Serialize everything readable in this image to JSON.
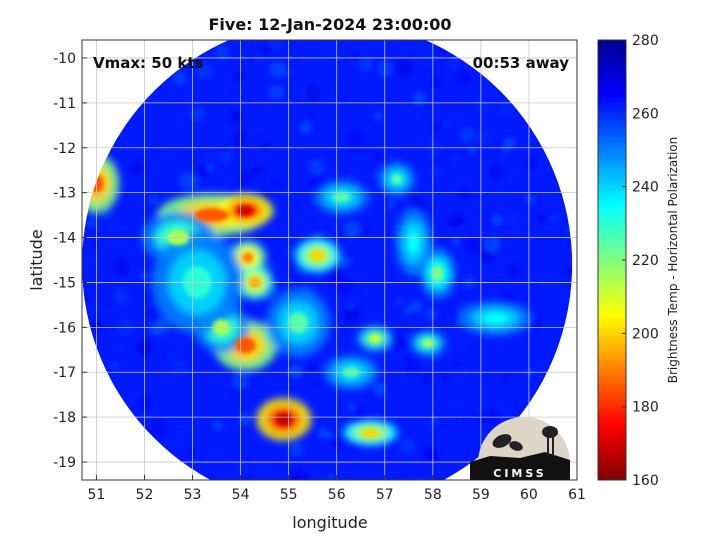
{
  "chart_data": {
    "type": "heatmap",
    "title": "Five: 12-Jan-2024 23:00:00",
    "xlabel": "longitude",
    "ylabel": "latitude",
    "xlim": [
      50.7,
      61
    ],
    "ylim": [
      -19.4,
      -9.6
    ],
    "x_ticks": [
      "51",
      "52",
      "53",
      "54",
      "55",
      "56",
      "57",
      "58",
      "59",
      "60",
      "61"
    ],
    "y_ticks": [
      "-10",
      "-11",
      "-12",
      "-13",
      "-14",
      "-15",
      "-16",
      "-17",
      "-18",
      "-19"
    ],
    "grid": true,
    "annotations": {
      "left": "Vmax: 50 kts",
      "right": "00:53 away"
    },
    "colorbar": {
      "label": "Brightness Temp - Horizontal Polarization",
      "range": [
        160,
        280
      ],
      "ticks": [
        "160",
        "180",
        "200",
        "220",
        "240",
        "260",
        "280"
      ],
      "colormap": "jet"
    },
    "swath": {
      "center": [
        55.8,
        -14.6
      ],
      "radius_deg": 5.1,
      "background_value": 262
    },
    "features": [
      {
        "lon": 53.4,
        "lat": -13.5,
        "value": 185,
        "rx": 0.6,
        "ry": 0.25
      },
      {
        "lon": 54.1,
        "lat": -13.4,
        "value": 170,
        "rx": 0.3,
        "ry": 0.2
      },
      {
        "lon": 52.7,
        "lat": -14.0,
        "value": 215,
        "rx": 0.4,
        "ry": 0.3
      },
      {
        "lon": 54.15,
        "lat": -14.45,
        "value": 190,
        "rx": 0.2,
        "ry": 0.2
      },
      {
        "lon": 54.3,
        "lat": -15.0,
        "value": 195,
        "rx": 0.2,
        "ry": 0.2
      },
      {
        "lon": 55.6,
        "lat": -14.4,
        "value": 200,
        "rx": 0.25,
        "ry": 0.2
      },
      {
        "lon": 54.1,
        "lat": -16.4,
        "value": 185,
        "rx": 0.35,
        "ry": 0.3
      },
      {
        "lon": 53.6,
        "lat": -16.0,
        "value": 215,
        "rx": 0.3,
        "ry": 0.3
      },
      {
        "lon": 54.9,
        "lat": -18.05,
        "value": 168,
        "rx": 0.3,
        "ry": 0.25
      },
      {
        "lon": 56.7,
        "lat": -18.35,
        "value": 200,
        "rx": 0.3,
        "ry": 0.15
      },
      {
        "lon": 56.8,
        "lat": -16.25,
        "value": 210,
        "rx": 0.2,
        "ry": 0.15
      },
      {
        "lon": 57.9,
        "lat": -16.35,
        "value": 215,
        "rx": 0.2,
        "ry": 0.15
      },
      {
        "lon": 58.1,
        "lat": -14.8,
        "value": 220,
        "rx": 0.2,
        "ry": 0.3
      },
      {
        "lon": 57.25,
        "lat": -12.7,
        "value": 225,
        "rx": 0.2,
        "ry": 0.2
      },
      {
        "lon": 56.1,
        "lat": -13.1,
        "value": 225,
        "rx": 0.3,
        "ry": 0.2
      },
      {
        "lon": 51.0,
        "lat": -12.8,
        "value": 185,
        "rx": 0.25,
        "ry": 0.35
      },
      {
        "lon": 55.2,
        "lat": -15.9,
        "value": 225,
        "rx": 0.35,
        "ry": 0.4
      },
      {
        "lon": 53.1,
        "lat": -15.0,
        "value": 230,
        "rx": 0.5,
        "ry": 0.6
      },
      {
        "lon": 56.3,
        "lat": -17.0,
        "value": 225,
        "rx": 0.3,
        "ry": 0.2
      },
      {
        "lon": 59.3,
        "lat": -15.8,
        "value": 235,
        "rx": 0.4,
        "ry": 0.2
      },
      {
        "lon": 57.6,
        "lat": -14.1,
        "value": 235,
        "rx": 0.2,
        "ry": 0.4
      }
    ]
  },
  "logo": {
    "text": "CIMSS"
  }
}
